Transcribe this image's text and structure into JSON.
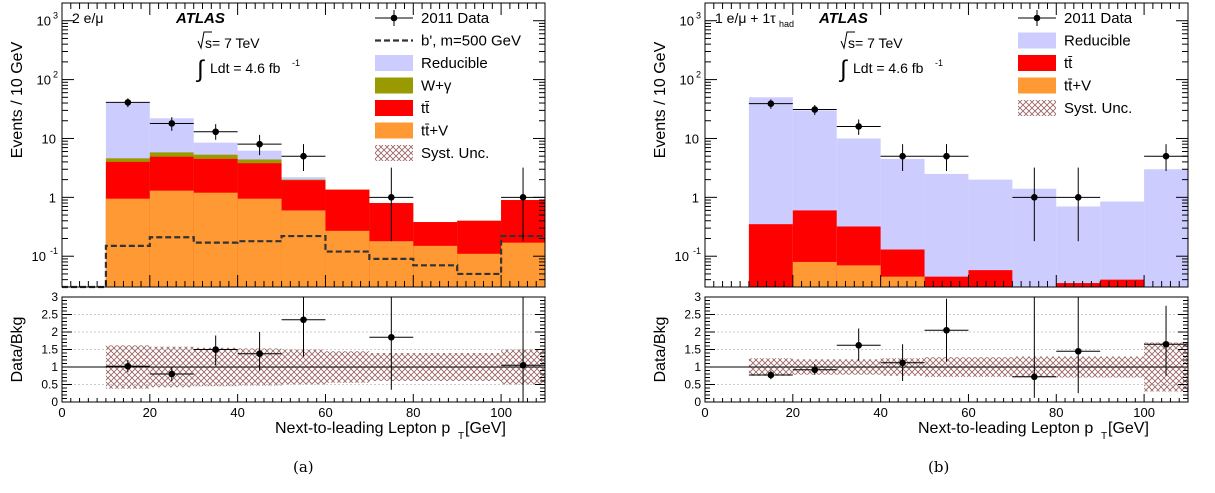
{
  "panels": [
    {
      "caption": "(a)",
      "channel": "2 e/μ",
      "experiment": "ATLAS",
      "energy": "s= 7 TeV",
      "lumi": "Ldt = 4.6 fb",
      "lumi_exp": "-1",
      "chart_data": {
        "type": "bar",
        "ylabel": "Events / 10 GeV",
        "xlabel": "Next-to-leading Lepton p",
        "xlabel_sub": "T",
        "xlabel_unit": " [GeV]",
        "ratio_ylabel": "Data/Bkg",
        "xlim": [
          0,
          110
        ],
        "ylim": [
          0.03,
          2000
        ],
        "y_log": true,
        "x_ticks": [
          "0",
          "20",
          "40",
          "60",
          "80",
          "100"
        ],
        "x_tick_values": [
          0,
          20,
          40,
          60,
          80,
          100
        ],
        "y_ticks": [
          {
            "value": 1000,
            "base": "10",
            "exp": "3"
          },
          {
            "value": 100,
            "base": "10",
            "exp": "2"
          },
          {
            "value": 10,
            "base": "10",
            "exp": ""
          },
          {
            "value": 1,
            "base": "1",
            "exp": ""
          },
          {
            "value": 0.1,
            "base": "10",
            "exp": "-1"
          }
        ],
        "ratio_ylim": [
          0,
          3
        ],
        "ratio_ticks": [
          "0",
          "0.5",
          "1",
          "1.5",
          "2",
          "2.5",
          "3"
        ],
        "ratio_tick_values": [
          0,
          0.5,
          1,
          1.5,
          2,
          2.5,
          3
        ],
        "bin_edges": [
          0,
          10,
          20,
          30,
          40,
          50,
          60,
          70,
          80,
          90,
          100,
          110
        ],
        "stack": [
          {
            "name": "tt̄+V",
            "color": "#ff9933",
            "values": [
              0.03,
              0.95,
              1.3,
              1.2,
              0.95,
              0.6,
              0.27,
              0.18,
              0.15,
              0.11,
              0.17
            ]
          },
          {
            "name": "tt̄",
            "color": "#ff0000",
            "values": [
              0.03,
              4.0,
              4.9,
              4.5,
              3.8,
              1.95,
              1.35,
              0.8,
              0.38,
              0.4,
              0.9
            ]
          },
          {
            "name": "W+γ",
            "color": "#999900",
            "values": [
              0.03,
              4.6,
              5.8,
              5.3,
              4.4,
              2.0,
              1.35,
              0.8,
              0.38,
              0.4,
              0.9
            ]
          },
          {
            "name": "Reducible",
            "color": "#ccccff",
            "values": [
              0.03,
              40,
              22,
              8.5,
              6.2,
              2.2,
              1.35,
              0.8,
              0.38,
              0.4,
              0.9
            ]
          }
        ],
        "signal": {
          "name": "b', m=500 GeV",
          "values": [
            0.03,
            0.15,
            0.21,
            0.17,
            0.18,
            0.22,
            0.12,
            0.09,
            0.07,
            0.05,
            0.22
          ]
        },
        "data": {
          "name": "2011 Data",
          "x": [
            15,
            25,
            35,
            45,
            55,
            75,
            105
          ],
          "y": [
            41,
            18,
            13,
            8,
            5,
            1,
            1
          ],
          "y_low": [
            34,
            13.5,
            9.5,
            5.2,
            2.8,
            0.18,
            0.18
          ],
          "y_high": [
            48,
            23,
            17.5,
            11.5,
            8,
            3.2,
            3.2
          ]
        },
        "ratio": {
          "x": [
            15,
            25,
            35,
            45,
            55,
            75,
            105
          ],
          "y": [
            1.02,
            0.8,
            1.5,
            1.38,
            2.35,
            1.85,
            1.05
          ],
          "y_low": [
            0.85,
            0.6,
            1.05,
            0.9,
            1.3,
            0.35,
            0.0
          ],
          "y_high": [
            1.2,
            1.0,
            1.9,
            2.0,
            3.0,
            3.0,
            3.0
          ]
        },
        "syst_band": {
          "low": [
            null,
            0.38,
            0.42,
            0.45,
            0.47,
            0.5,
            0.55,
            0.6,
            0.6,
            0.6,
            0.5
          ],
          "high": [
            null,
            1.62,
            1.58,
            1.55,
            1.53,
            1.5,
            1.45,
            1.4,
            1.4,
            1.4,
            1.5
          ]
        },
        "legend": [
          {
            "label": "2011 Data",
            "kind": "data"
          },
          {
            "label": "b', m=500 GeV",
            "kind": "dashed"
          },
          {
            "label": "Reducible",
            "kind": "fill",
            "color": "#ccccff"
          },
          {
            "label": "W+γ",
            "kind": "fill",
            "color": "#999900"
          },
          {
            "label": "tt̄",
            "kind": "fill",
            "color": "#ff0000"
          },
          {
            "label": "tt̄+V",
            "kind": "fill",
            "color": "#ff9933"
          },
          {
            "label": "Syst. Unc.",
            "kind": "hatch"
          }
        ]
      }
    },
    {
      "caption": "(b)",
      "channel": "1 e/μ + 1τ",
      "channel_sub": "had",
      "experiment": "ATLAS",
      "energy": "s= 7 TeV",
      "lumi": "Ldt = 4.6 fb",
      "lumi_exp": "-1",
      "chart_data": {
        "type": "bar",
        "ylabel": "Events / 10 GeV",
        "xlabel": "Next-to-leading Lepton p",
        "xlabel_sub": "T",
        "xlabel_unit": " [GeV]",
        "ratio_ylabel": "Data/Bkg",
        "xlim": [
          0,
          110
        ],
        "ylim": [
          0.03,
          2000
        ],
        "y_log": true,
        "x_ticks": [
          "0",
          "20",
          "40",
          "60",
          "80",
          "100"
        ],
        "x_tick_values": [
          0,
          20,
          40,
          60,
          80,
          100
        ],
        "y_ticks": [
          {
            "value": 1000,
            "base": "10",
            "exp": "3"
          },
          {
            "value": 100,
            "base": "10",
            "exp": "2"
          },
          {
            "value": 10,
            "base": "10",
            "exp": ""
          },
          {
            "value": 1,
            "base": "1",
            "exp": ""
          },
          {
            "value": 0.1,
            "base": "10",
            "exp": "-1"
          }
        ],
        "ratio_ylim": [
          0,
          3
        ],
        "ratio_ticks": [
          "0",
          "0.5",
          "1",
          "1.5",
          "2",
          "2.5",
          "3"
        ],
        "ratio_tick_values": [
          0,
          0.5,
          1,
          1.5,
          2,
          2.5,
          3
        ],
        "bin_edges": [
          0,
          10,
          20,
          30,
          40,
          50,
          60,
          70,
          80,
          90,
          100,
          110
        ],
        "stack": [
          {
            "name": "tt̄+V",
            "color": "#ff9933",
            "values": [
              0.03,
              0.03,
              0.08,
              0.07,
              0.045,
              0.03,
              0.03,
              0.03,
              0.03,
              0.03,
              0.03
            ]
          },
          {
            "name": "tt̄",
            "color": "#ff0000",
            "values": [
              0.03,
              0.35,
              0.6,
              0.32,
              0.13,
              0.045,
              0.058,
              0.03,
              0.035,
              0.04,
              0.03
            ]
          },
          {
            "name": "Reducible",
            "color": "#ccccff",
            "values": [
              0.03,
              50,
              30,
              10,
              4.5,
              2.5,
              2.0,
              1.4,
              0.7,
              0.85,
              3.0
            ]
          }
        ],
        "data": {
          "name": "2011 Data",
          "x": [
            15,
            25,
            35,
            45,
            55,
            75,
            85,
            105
          ],
          "y": [
            39,
            31,
            16,
            5,
            5,
            1,
            1,
            5
          ],
          "y_low": [
            32,
            25,
            11.5,
            2.8,
            2.8,
            0.18,
            0.18,
            2.8
          ],
          "y_high": [
            46,
            37,
            21,
            8,
            8,
            3.2,
            3.2,
            8
          ]
        },
        "ratio": {
          "x": [
            15,
            25,
            35,
            45,
            55,
            75,
            85,
            105
          ],
          "y": [
            0.77,
            0.92,
            1.62,
            1.12,
            2.05,
            0.72,
            1.45,
            1.65
          ],
          "y_low": [
            0.65,
            0.78,
            1.18,
            0.6,
            1.15,
            0.12,
            0.25,
            0.75
          ],
          "y_high": [
            0.9,
            1.08,
            2.1,
            1.65,
            2.95,
            3.0,
            3.0,
            2.75
          ]
        },
        "syst_band": {
          "low": [
            null,
            0.75,
            0.78,
            0.78,
            0.75,
            0.72,
            0.72,
            0.7,
            0.7,
            0.7,
            0.3
          ],
          "high": [
            null,
            1.25,
            1.22,
            1.22,
            1.25,
            1.28,
            1.28,
            1.3,
            1.3,
            1.3,
            1.7
          ]
        },
        "legend": [
          {
            "label": "2011 Data",
            "kind": "data"
          },
          {
            "label": "Reducible",
            "kind": "fill",
            "color": "#ccccff"
          },
          {
            "label": "tt̄",
            "kind": "fill",
            "color": "#ff0000"
          },
          {
            "label": "tt̄+V",
            "kind": "fill",
            "color": "#ff9933"
          },
          {
            "label": "Syst. Unc.",
            "kind": "hatch"
          }
        ]
      }
    }
  ]
}
